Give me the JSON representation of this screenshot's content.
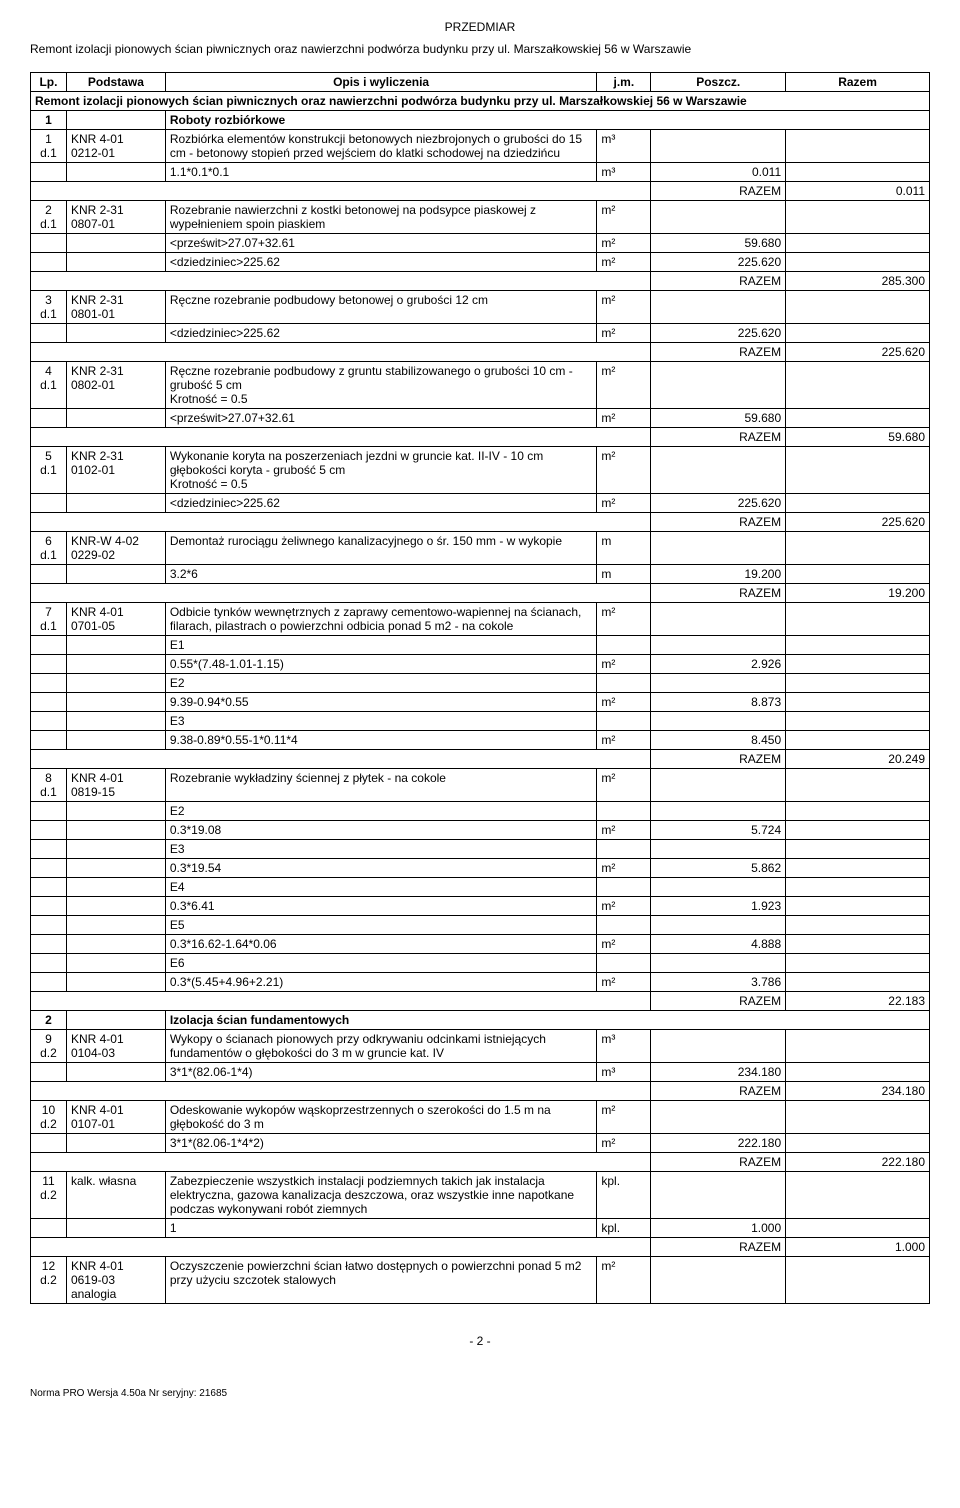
{
  "title": "PRZEDMIAR",
  "subtitle": "Remont izolacji pionowych ścian piwnicznych oraz nawierzchni podwórza budynku przy ul. Marszałkowskiej 56 w Warszawie",
  "header": {
    "lp": "Lp.",
    "podstawa": "Podstawa",
    "opis": "Opis i wyliczenia",
    "jm": "j.m.",
    "poszcz": "Poszcz.",
    "razem": "Razem"
  },
  "project_row": "Remont izolacji pionowych ścian piwnicznych oraz nawierzchni podwórza budynku przy ul. Marszałkowskiej 56 w Warszawie",
  "sections": [
    {
      "num": "1",
      "title": "Roboty rozbiórkowe",
      "items": [
        {
          "lp": "1",
          "dept": "d.1",
          "pod1": "KNR 4-01",
          "pod2": "0212-01",
          "desc": "Rozbiórka elementów konstrukcji betonowych niezbrojonych o grubości do 15 cm - betonowy stopień przed wejściem do klatki schodowej na dziedzińcu",
          "jm": "m³",
          "calcs": [
            {
              "expr": "1.1*0.1*0.1",
              "jm": "m³",
              "val": "0.011"
            }
          ],
          "razem": "0.011"
        },
        {
          "lp": "2",
          "dept": "d.1",
          "pod1": "KNR 2-31",
          "pod2": "0807-01",
          "desc": "Rozebranie nawierzchni z kostki betonowej na podsypce piaskowej z wypełnieniem spoin piaskiem",
          "jm": "m²",
          "calcs": [
            {
              "expr": "<prześwit>27.07+32.61",
              "jm": "m²",
              "val": "59.680"
            },
            {
              "expr": "<dziedziniec>225.62",
              "jm": "m²",
              "val": "225.620"
            }
          ],
          "razem": "285.300"
        },
        {
          "lp": "3",
          "dept": "d.1",
          "pod1": "KNR 2-31",
          "pod2": "0801-01",
          "desc": "Ręczne rozebranie podbudowy betonowej o grubości 12 cm",
          "jm": "m²",
          "blank": true,
          "calcs": [
            {
              "expr": "<dziedziniec>225.62",
              "jm": "m²",
              "val": "225.620"
            }
          ],
          "razem": "225.620"
        },
        {
          "lp": "4",
          "dept": "d.1",
          "pod1": "KNR 2-31",
          "pod2": "0802-01",
          "desc": "Ręczne rozebranie podbudowy z gruntu stabilizowanego o grubości 10 cm - grubość 5 cm\nKrotność = 0.5",
          "jm": "m²",
          "calcs": [
            {
              "expr": "<prześwit>27.07+32.61",
              "jm": "m²",
              "val": "59.680"
            }
          ],
          "razem": "59.680"
        },
        {
          "lp": "5",
          "dept": "d.1",
          "pod1": "KNR 2-31",
          "pod2": "0102-01",
          "desc": "Wykonanie koryta na poszerzeniach jezdni w gruncie kat. II-IV - 10 cm głębokości koryta - grubość 5 cm\nKrotność = 0.5",
          "jm": "m²",
          "calcs": [
            {
              "expr": "<dziedziniec>225.62",
              "jm": "m²",
              "val": "225.620"
            }
          ],
          "razem": "225.620"
        },
        {
          "lp": "6",
          "dept": "d.1",
          "pod1": "KNR-W 4-02",
          "pod2": "0229-02",
          "desc": "Demontaż rurociągu żeliwnego kanalizacyjnego o śr. 150 mm - w wykopie",
          "jm": "m",
          "calcs": [
            {
              "expr": "3.2*6",
              "jm": "m",
              "val": "19.200"
            }
          ],
          "razem": "19.200"
        },
        {
          "lp": "7",
          "dept": "d.1",
          "pod1": "KNR 4-01",
          "pod2": "0701-05",
          "desc": "Odbicie tynków wewnętrznych z zaprawy cementowo-wapiennej na ścianach, filarach, pilastrach o powierzchni odbicia ponad 5 m2 - na cokole",
          "jm": "m²",
          "calcs": [
            {
              "expr": "E1",
              "jm": "",
              "val": ""
            },
            {
              "expr": "0.55*(7.48-1.01-1.15)",
              "jm": "m²",
              "val": "2.926"
            },
            {
              "expr": "E2",
              "jm": "",
              "val": ""
            },
            {
              "expr": "9.39-0.94*0.55",
              "jm": "m²",
              "val": "8.873"
            },
            {
              "expr": "E3",
              "jm": "",
              "val": ""
            },
            {
              "expr": "9.38-0.89*0.55-1*0.11*4",
              "jm": "m²",
              "val": "8.450"
            }
          ],
          "razem": "20.249"
        },
        {
          "lp": "8",
          "dept": "d.1",
          "pod1": "KNR 4-01",
          "pod2": "0819-15",
          "desc": "Rozebranie wykładziny ściennej z płytek - na cokole",
          "jm": "m²",
          "calcs": [
            {
              "expr": "E2",
              "jm": "",
              "val": ""
            },
            {
              "expr": "0.3*19.08",
              "jm": "m²",
              "val": "5.724"
            },
            {
              "expr": "E3",
              "jm": "",
              "val": ""
            },
            {
              "expr": "0.3*19.54",
              "jm": "m²",
              "val": "5.862"
            },
            {
              "expr": "E4",
              "jm": "",
              "val": ""
            },
            {
              "expr": "0.3*6.41",
              "jm": "m²",
              "val": "1.923"
            },
            {
              "expr": "E5",
              "jm": "",
              "val": ""
            },
            {
              "expr": "0.3*16.62-1.64*0.06",
              "jm": "m²",
              "val": "4.888"
            },
            {
              "expr": "E6",
              "jm": "",
              "val": ""
            },
            {
              "expr": "0.3*(5.45+4.96+2.21)",
              "jm": "m²",
              "val": "3.786"
            }
          ],
          "razem": "22.183"
        }
      ]
    },
    {
      "num": "2",
      "title": "Izolacja ścian fundamentowych",
      "items": [
        {
          "lp": "9",
          "dept": "d.2",
          "pod1": "KNR 4-01",
          "pod2": "0104-03",
          "desc": "Wykopy o ścianach pionowych przy odkrywaniu odcinkami istniejących fundamentów o głębokości do 3 m w gruncie kat. IV",
          "jm": "m³",
          "calcs": [
            {
              "expr": "3*1*(82.06-1*4)",
              "jm": "m³",
              "val": "234.180"
            }
          ],
          "razem": "234.180"
        },
        {
          "lp": "10",
          "dept": "d.2",
          "pod1": "KNR 4-01",
          "pod2": "0107-01",
          "desc": "Odeskowanie wykopów wąskoprzestrzennych o szerokości do 1.5 m na głębokość do 3 m",
          "jm": "m²",
          "calcs": [
            {
              "expr": "3*1*(82.06-1*4*2)",
              "jm": "m²",
              "val": "222.180"
            }
          ],
          "razem": "222.180"
        },
        {
          "lp": "11",
          "dept": "d.2",
          "pod1": "",
          "pod2": "kalk. własna",
          "desc": "Zabezpieczenie wszystkich instalacji podziemnych takich jak instalacja elektryczna, gazowa kanalizacja deszczowa, oraz wszystkie inne napotkane podczas wykonywani robót ziemnych",
          "jm": "kpl.",
          "calcs": [
            {
              "expr": "1",
              "jm": "kpl.",
              "val": "1.000"
            }
          ],
          "razem": "1.000"
        },
        {
          "lp": "12",
          "dept": "d.2",
          "pod1": "KNR 4-01",
          "pod2": "0619-03\nanalogia",
          "desc": "Oczyszczenie powierzchni ścian łatwo dostępnych o powierzchni ponad 5 m2 przy użyciu szczotek stalowych",
          "jm": "m²",
          "calcs": [],
          "razem": null
        }
      ]
    }
  ],
  "razem_label": "RAZEM",
  "page_num": "- 2 -",
  "footer": "Norma PRO Wersja 4.50a Nr seryjny: 21685"
}
